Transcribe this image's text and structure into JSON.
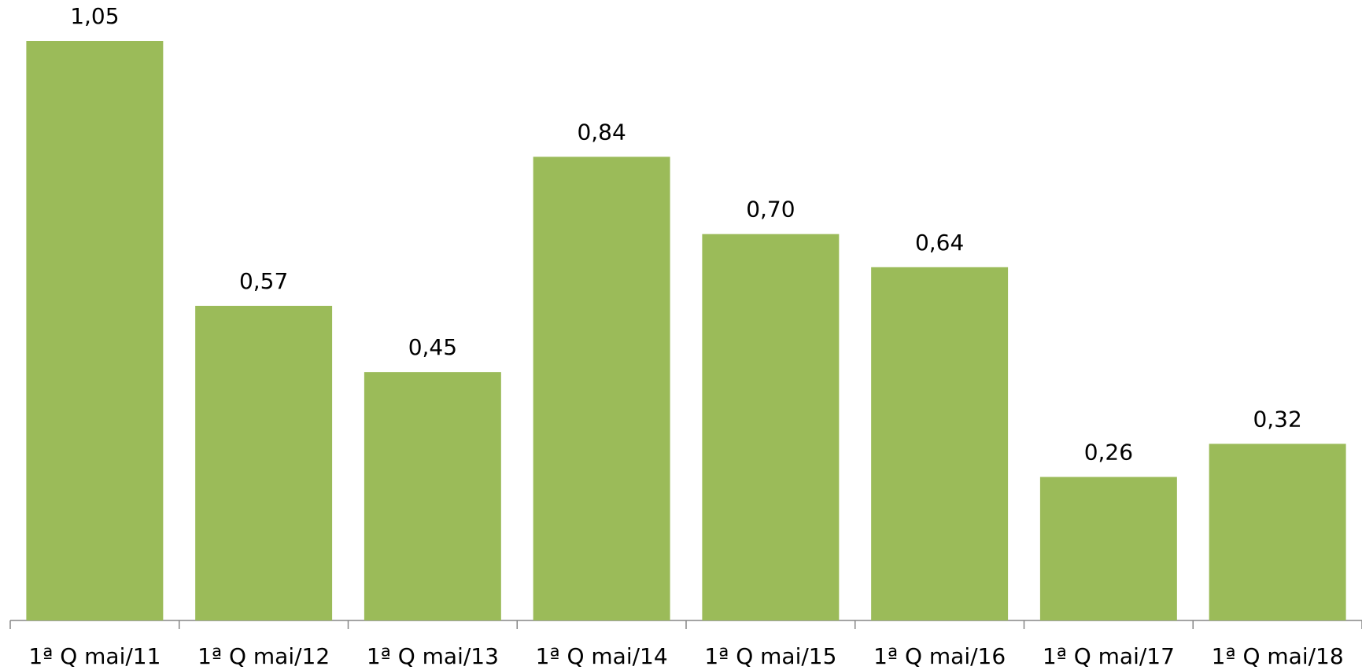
{
  "chart_data": {
    "type": "bar",
    "categories": [
      "1ª Q mai/11",
      "1ª Q mai/12",
      "1ª Q mai/13",
      "1ª Q mai/14",
      "1ª Q mai/15",
      "1ª Q mai/16",
      "1ª Q mai/17",
      "1ª Q mai/18"
    ],
    "values": [
      1.05,
      0.57,
      0.45,
      0.84,
      0.7,
      0.64,
      0.26,
      0.32
    ],
    "value_labels": [
      "1,05",
      "0,57",
      "0,45",
      "0,84",
      "0,70",
      "0,64",
      "0,26",
      "0,32"
    ],
    "color": "#9bbb59"
  }
}
